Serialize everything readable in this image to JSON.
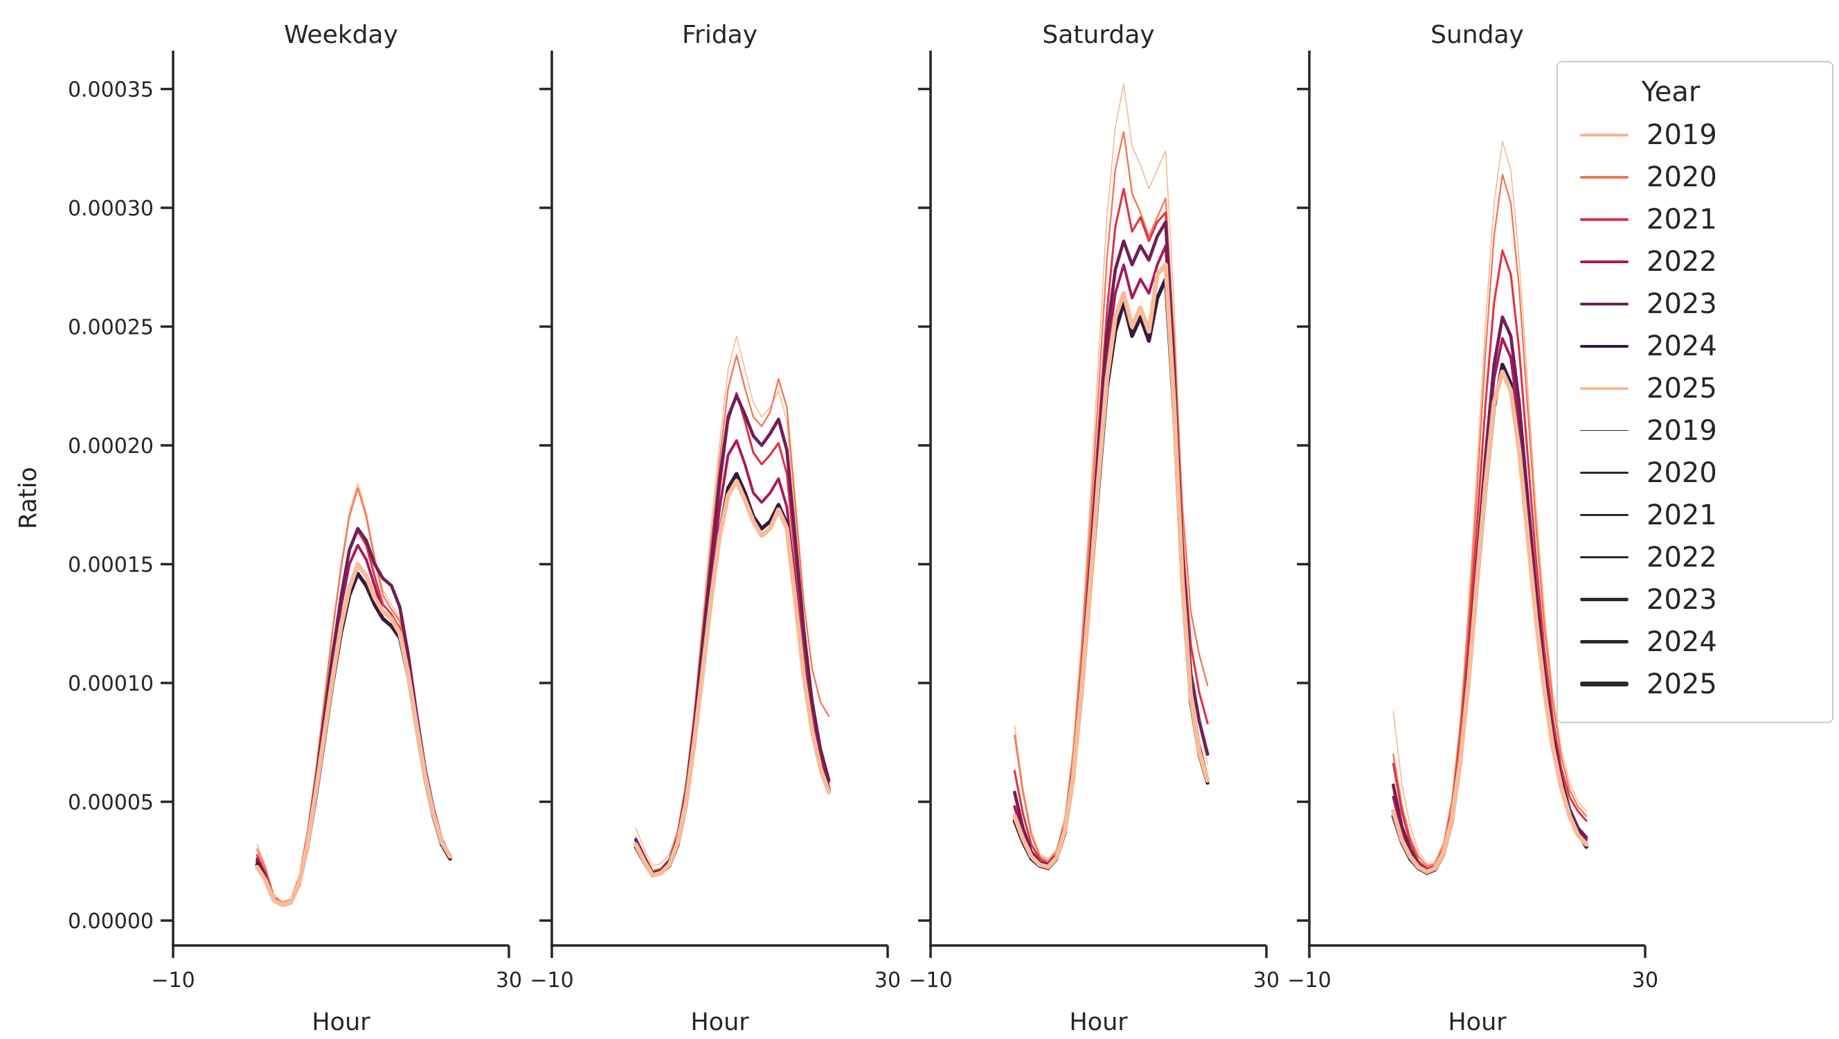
{
  "figure": {
    "ylabel": "Ratio",
    "xlabel": "Hour",
    "background": "#ffffff",
    "text_color": "#262626",
    "spine_color": "#262626"
  },
  "years": [
    {
      "label": "2019",
      "color": "#f6b48f",
      "line_width": 1.5
    },
    {
      "label": "2020",
      "color": "#f37651",
      "line_width": 2.3
    },
    {
      "label": "2021",
      "color": "#e13342",
      "line_width": 3.1
    },
    {
      "label": "2022",
      "color": "#ad1759",
      "line_width": 3.9
    },
    {
      "label": "2023",
      "color": "#701f57",
      "line_width": 4.7
    },
    {
      "label": "2024",
      "color": "#35193e",
      "line_width": 5.5
    },
    {
      "label": "2025",
      "color": "#f8bc99",
      "line_width": 6.5
    }
  ],
  "legend": {
    "title": "Year",
    "border_color": "#cccccc",
    "size_sample_color": "#2b2b2b",
    "hue_sample_height": 4,
    "hue_entries": [
      {
        "label": "2019",
        "color": "#f6b48f"
      },
      {
        "label": "2020",
        "color": "#f37651"
      },
      {
        "label": "2021",
        "color": "#e13342"
      },
      {
        "label": "2022",
        "color": "#ad1759"
      },
      {
        "label": "2023",
        "color": "#701f57"
      },
      {
        "label": "2024",
        "color": "#35193e"
      },
      {
        "label": "2025",
        "color": "#f8bc99"
      }
    ],
    "size_entries": [
      {
        "label": "2019",
        "width": 1.5
      },
      {
        "label": "2020",
        "width": 2.3
      },
      {
        "label": "2021",
        "width": 3.1
      },
      {
        "label": "2022",
        "width": 3.9
      },
      {
        "label": "2023",
        "width": 4.7
      },
      {
        "label": "2024",
        "width": 5.5
      },
      {
        "label": "2025",
        "width": 6.5
      }
    ]
  },
  "chart_data": {
    "type": "line",
    "title": "",
    "xlabel": "Hour",
    "ylabel": "Ratio",
    "xlim": [
      -10,
      30
    ],
    "x_ticks": [
      -10,
      30
    ],
    "x_tick_labels": [
      "−10",
      "30"
    ],
    "ylim": [
      -1.05e-05,
      0.000366
    ],
    "y_ticks": [
      0.0,
      5e-05,
      0.0001,
      0.00015,
      0.0002,
      0.00025,
      0.0003,
      0.00035
    ],
    "grid": false,
    "legend_title": "Year",
    "legend_position": "right",
    "values_unit": 1e-05,
    "x": [
      0,
      1,
      2,
      3,
      4,
      5,
      6,
      7,
      8,
      9,
      10,
      11,
      12,
      13,
      14,
      15,
      16,
      17,
      18,
      19,
      20,
      21,
      22,
      23
    ],
    "panels": [
      {
        "title": "Weekday",
        "series": [
          {
            "name": "2019",
            "values": [
              3.2,
              2.3,
              1.1,
              0.8,
              0.9,
              1.9,
              3.8,
              6.4,
              9.4,
              12.4,
              15.0,
              17.2,
              18.4,
              17.2,
              15.4,
              13.9,
              13.3,
              12.7,
              11.0,
              8.6,
              6.3,
              4.6,
              3.4,
              2.8
            ]
          },
          {
            "name": "2020",
            "values": [
              3.0,
              2.2,
              1.0,
              0.75,
              0.85,
              1.8,
              3.7,
              6.2,
              9.2,
              12.2,
              14.8,
              17.0,
              18.2,
              17.0,
              15.2,
              13.7,
              13.1,
              12.6,
              10.9,
              8.5,
              6.2,
              4.5,
              3.3,
              2.7
            ]
          },
          {
            "name": "2021",
            "values": [
              2.75,
              2.0,
              0.95,
              0.7,
              0.8,
              1.7,
              3.5,
              5.9,
              8.6,
              11.3,
              13.7,
              15.6,
              16.4,
              15.8,
              14.5,
              13.3,
              12.9,
              12.3,
              10.6,
              8.3,
              6.1,
              4.4,
              3.2,
              2.6
            ]
          },
          {
            "name": "2022",
            "values": [
              2.6,
              1.9,
              0.9,
              0.68,
              0.78,
              1.65,
              3.4,
              5.7,
              8.3,
              10.9,
              13.2,
              15.0,
              15.8,
              15.2,
              14.1,
              13.0,
              12.7,
              12.2,
              10.5,
              8.2,
              6.0,
              4.4,
              3.2,
              2.6
            ]
          },
          {
            "name": "2023",
            "values": [
              2.5,
              1.85,
              0.9,
              0.68,
              0.78,
              1.6,
              3.4,
              5.8,
              8.5,
              11.2,
              13.6,
              15.6,
              16.5,
              16.0,
              15.0,
              14.4,
              14.1,
              13.2,
              11.2,
              8.7,
              6.4,
              4.7,
              3.4,
              2.7
            ]
          },
          {
            "name": "2024",
            "values": [
              2.35,
              1.75,
              0.85,
              0.65,
              0.75,
              1.5,
              3.1,
              5.2,
              7.6,
              10.0,
              12.1,
              13.7,
              14.6,
              14.1,
              13.3,
              12.7,
              12.4,
              11.9,
              10.3,
              8.1,
              6.0,
              4.4,
              3.2,
              2.6
            ]
          },
          {
            "name": "2025",
            "values": [
              2.25,
              1.7,
              0.85,
              0.66,
              0.76,
              1.55,
              3.2,
              5.4,
              7.8,
              10.2,
              12.4,
              14.0,
              15.0,
              14.5,
              13.6,
              13.0,
              12.7,
              12.1,
              10.4,
              8.2,
              6.1,
              4.5,
              3.3,
              2.7
            ]
          }
        ]
      },
      {
        "title": "Friday",
        "series": [
          {
            "name": "2019",
            "values": [
              3.9,
              3.0,
              2.3,
              2.4,
              2.8,
              3.9,
              6.0,
              9.1,
              12.9,
              16.7,
              20.1,
              23.2,
              24.6,
              23.2,
              21.8,
              21.2,
              21.6,
              22.3,
              21.0,
              17.0,
              12.8,
              9.6,
              7.4,
              6.1
            ]
          },
          {
            "name": "2020",
            "values": [
              3.5,
              2.8,
              2.1,
              2.2,
              2.6,
              3.7,
              5.7,
              8.7,
              12.4,
              16.0,
              19.4,
              22.4,
              23.8,
              22.4,
              21.2,
              20.8,
              21.4,
              22.8,
              21.6,
              17.6,
              13.4,
              10.6,
              9.2,
              8.6
            ]
          },
          {
            "name": "2021",
            "values": [
              3.3,
              2.6,
              2.0,
              2.1,
              2.5,
              3.5,
              5.4,
              8.2,
              11.6,
              15.0,
              18.2,
              21.0,
              22.2,
              21.0,
              19.7,
              19.2,
              19.6,
              20.1,
              18.8,
              15.2,
              11.6,
              8.9,
              7.0,
              5.8
            ]
          },
          {
            "name": "2022",
            "values": [
              3.25,
              2.55,
              1.95,
              2.05,
              2.4,
              3.4,
              5.2,
              7.9,
              11.2,
              14.4,
              17.4,
              19.6,
              20.2,
              19.2,
              18.0,
              17.6,
              18.0,
              18.6,
              17.4,
              14.2,
              10.9,
              8.4,
              6.7,
              5.6
            ]
          },
          {
            "name": "2023",
            "values": [
              3.4,
              2.65,
              2.0,
              2.1,
              2.5,
              3.5,
              5.4,
              8.3,
              11.8,
              15.2,
              18.6,
              21.2,
              22.1,
              21.3,
              20.4,
              20.0,
              20.5,
              21.1,
              19.8,
              16.0,
              12.2,
              9.2,
              7.2,
              5.9
            ]
          },
          {
            "name": "2024",
            "values": [
              3.1,
              2.45,
              1.9,
              2.0,
              2.3,
              3.2,
              4.9,
              7.5,
              10.5,
              13.5,
              16.3,
              18.2,
              18.8,
              18.0,
              17.0,
              16.5,
              16.8,
              17.5,
              16.7,
              13.7,
              10.5,
              8.1,
              6.5,
              5.5
            ]
          },
          {
            "name": "2025",
            "values": [
              3.2,
              2.5,
              1.9,
              2.0,
              2.35,
              3.3,
              5.0,
              7.6,
              10.6,
              13.6,
              16.2,
              17.9,
              18.5,
              17.7,
              16.8,
              16.2,
              16.5,
              17.3,
              16.5,
              13.5,
              10.3,
              8.0,
              6.4,
              5.4
            ]
          }
        ]
      },
      {
        "title": "Saturday",
        "series": [
          {
            "name": "2019",
            "values": [
              8.2,
              5.6,
              3.8,
              2.8,
              2.6,
              3.0,
              4.4,
              7.4,
              12.0,
              17.6,
              23.6,
              29.6,
              33.4,
              35.2,
              32.6,
              31.8,
              30.8,
              31.6,
              32.4,
              26.0,
              17.0,
              10.6,
              8.2,
              6.6
            ]
          },
          {
            "name": "2020",
            "values": [
              7.8,
              5.4,
              3.6,
              2.7,
              2.5,
              2.9,
              4.2,
              7.0,
              11.4,
              16.6,
              22.2,
              27.8,
              31.6,
              33.2,
              30.6,
              29.8,
              28.8,
              29.6,
              30.4,
              24.6,
              17.4,
              13.0,
              11.2,
              9.9
            ]
          },
          {
            "name": "2021",
            "values": [
              6.3,
              4.5,
              3.2,
              2.6,
              2.4,
              2.8,
              4.0,
              6.6,
              10.6,
              15.4,
              20.6,
              25.6,
              29.2,
              30.8,
              29.0,
              29.6,
              28.6,
              29.4,
              29.8,
              23.8,
              16.0,
              11.6,
              9.6,
              8.3
            ]
          },
          {
            "name": "2022",
            "values": [
              4.8,
              3.6,
              2.8,
              2.4,
              2.3,
              2.7,
              3.9,
              6.3,
              10.0,
              14.4,
              19.2,
              23.8,
              26.4,
              27.6,
              26.2,
              27.0,
              26.4,
              27.6,
              28.4,
              22.4,
              14.6,
              9.6,
              7.4,
              6.0
            ]
          },
          {
            "name": "2023",
            "values": [
              5.4,
              3.9,
              2.9,
              2.45,
              2.35,
              2.75,
              3.95,
              6.4,
              10.2,
              14.8,
              19.8,
              24.6,
              27.4,
              28.6,
              27.6,
              28.4,
              27.8,
              28.8,
              29.4,
              23.2,
              15.4,
              10.4,
              8.4,
              7.0
            ]
          },
          {
            "name": "2024",
            "values": [
              4.2,
              3.3,
              2.6,
              2.3,
              2.2,
              2.6,
              3.7,
              6.0,
              9.6,
              13.8,
              18.2,
              22.4,
              24.8,
              26.0,
              24.6,
              25.4,
              24.4,
              26.2,
              27.0,
              21.4,
              14.0,
              9.2,
              7.0,
              5.8
            ]
          },
          {
            "name": "2025",
            "values": [
              4.4,
              3.45,
              2.7,
              2.35,
              2.25,
              2.65,
              3.8,
              6.1,
              9.8,
              14.0,
              18.6,
              22.8,
              25.4,
              26.4,
              25.0,
              25.8,
              24.8,
              27.2,
              27.6,
              21.8,
              14.2,
              9.4,
              7.1,
              5.9
            ]
          }
        ]
      },
      {
        "title": "Sunday",
        "series": [
          {
            "name": "2019",
            "values": [
              8.8,
              5.8,
              4.0,
              2.9,
              2.4,
              2.5,
              3.3,
              5.2,
              8.6,
              13.4,
              19.2,
              25.2,
              30.2,
              32.8,
              31.6,
              27.8,
              22.6,
              17.4,
              13.0,
              9.6,
              7.2,
              5.8,
              5.0,
              4.6
            ]
          },
          {
            "name": "2020",
            "values": [
              7.0,
              4.9,
              3.5,
              2.7,
              2.3,
              2.4,
              3.2,
              5.0,
              8.2,
              12.8,
              18.2,
              24.0,
              28.8,
              31.4,
              30.2,
              26.6,
              21.6,
              16.6,
              12.4,
              9.2,
              6.9,
              5.5,
              4.8,
              4.4
            ]
          },
          {
            "name": "2021",
            "values": [
              6.6,
              4.6,
              3.3,
              2.5,
              2.2,
              2.3,
              3.0,
              4.7,
              7.7,
              11.9,
              16.8,
              21.8,
              26.0,
              28.2,
              27.2,
              24.0,
              19.6,
              15.2,
              11.4,
              8.5,
              6.4,
              5.2,
              4.6,
              4.2
            ]
          },
          {
            "name": "2022",
            "values": [
              5.2,
              3.8,
              2.9,
              2.3,
              2.1,
              2.25,
              2.9,
              4.4,
              7.0,
              10.6,
              14.9,
              19.2,
              22.8,
              24.5,
              23.7,
              21.0,
              17.2,
              13.5,
              10.2,
              7.7,
              5.9,
              4.6,
              3.8,
              3.4
            ]
          },
          {
            "name": "2023",
            "values": [
              5.7,
              4.0,
              3.0,
              2.35,
              2.1,
              2.2,
              2.9,
              4.4,
              7.1,
              10.8,
              15.2,
              19.6,
              23.4,
              25.4,
              24.6,
              21.8,
              17.8,
              13.9,
              10.5,
              7.9,
              6.0,
              4.7,
              3.9,
              3.5
            ]
          },
          {
            "name": "2024",
            "values": [
              4.4,
              3.3,
              2.6,
              2.2,
              2.0,
              2.15,
              2.8,
              4.2,
              6.7,
              10.1,
              14.2,
              18.2,
              21.6,
              23.4,
              22.6,
              20.0,
              16.4,
              12.9,
              9.8,
              7.4,
              5.7,
              4.5,
              3.7,
              3.1
            ]
          },
          {
            "name": "2025",
            "values": [
              4.6,
              3.4,
              2.7,
              2.25,
              2.05,
              2.2,
              2.85,
              4.3,
              6.8,
              10.2,
              14.4,
              18.4,
              21.8,
              23.1,
              22.3,
              19.8,
              16.2,
              12.7,
              9.7,
              7.3,
              5.6,
              4.4,
              3.6,
              3.2
            ]
          }
        ]
      }
    ]
  }
}
